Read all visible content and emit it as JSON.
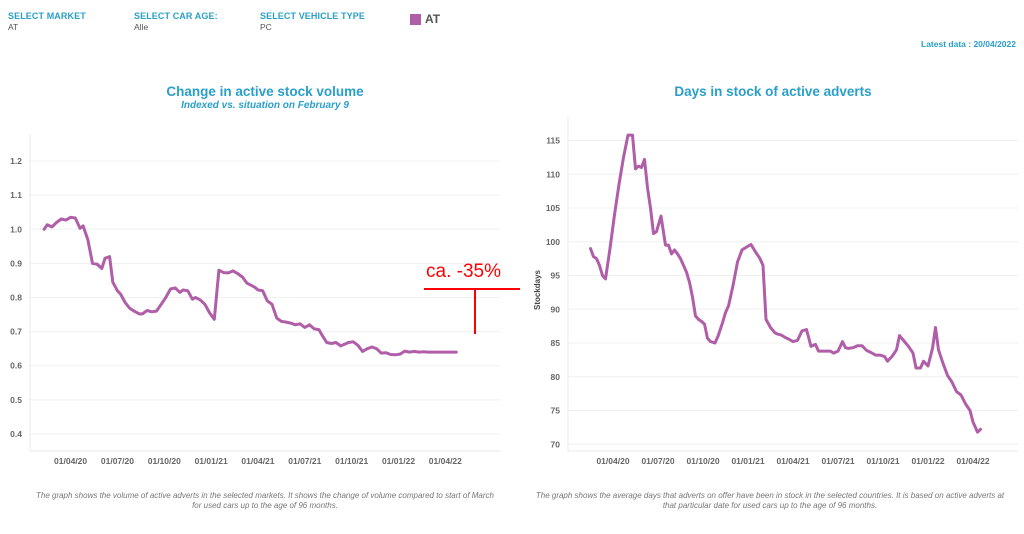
{
  "filters": [
    {
      "label": "SELECT MARKET",
      "value": "AT"
    },
    {
      "label": "SELECT CAR AGE:",
      "value": "Alle"
    },
    {
      "label": "SELECT VEHICLE TYPE",
      "value": "PC"
    }
  ],
  "legend": {
    "label": "AT",
    "color": "#b05ea8"
  },
  "latest_data": "Latest data : 20/04/2022",
  "colors": {
    "accent": "#2a9fc9",
    "series": "#b05ea8",
    "annotation": "#ff0000"
  },
  "chart_data": [
    {
      "type": "line",
      "title": "Change in active stock volume",
      "subtitle": "Indexed vs. situation on February 9",
      "xlabel": "",
      "ylabel": "",
      "ylim": [
        0.35,
        1.25
      ],
      "yticks": [
        1.2,
        1.1,
        1.0,
        0.9,
        0.8,
        0.7,
        0.6,
        0.5,
        0.4
      ],
      "ytick_labels": [
        "1.2",
        "1.1",
        "1.0",
        "0.9",
        "0.8",
        "0.7",
        "0.6",
        "0.5",
        "0.4"
      ],
      "xticks": [
        0,
        3,
        6,
        9,
        12,
        15,
        18,
        21,
        24
      ],
      "xtick_labels": [
        "01/04/20",
        "01/07/20",
        "01/10/20",
        "01/01/21",
        "01/04/21",
        "01/07/21",
        "01/10/21",
        "01/01/22",
        "01/04/22"
      ],
      "xlim": [
        -2.6,
        27.5
      ],
      "x_unit": "months since 01/04/20",
      "grid": true,
      "annotation": {
        "text": "ca. -35%",
        "color": "#ff0000"
      },
      "note": "The graph shows the volume of active adverts in the selected markets. It shows the change of volume compared to start of March for used cars up to the age of 96 months.",
      "series": [
        {
          "name": "AT",
          "color": "#b05ea8",
          "x": [
            -1.7,
            -1.5,
            -1.2,
            -0.9,
            -0.6,
            -0.3,
            0,
            0.3,
            0.6,
            0.8,
            1.1,
            1.4,
            1.7,
            2.0,
            2.2,
            2.5,
            2.7,
            3.0,
            3.2,
            3.5,
            3.8,
            4.0,
            4.2,
            4.4,
            4.6,
            4.9,
            5.2,
            5.5,
            5.8,
            6.1,
            6.4,
            6.7,
            7.0,
            7.2,
            7.5,
            7.8,
            8.0,
            8.3,
            8.6,
            8.9,
            9.2,
            9.5,
            9.8,
            10.1,
            10.4,
            10.7,
            11.0,
            11.3,
            11.6,
            11.8,
            12.0,
            12.3,
            12.6,
            12.9,
            13.2,
            13.5,
            13.8,
            14.1,
            14.4,
            14.7,
            15.0,
            15.3,
            15.6,
            15.9,
            16.1,
            16.4,
            16.7,
            17.0,
            17.3,
            17.6,
            17.8,
            18.1,
            18.4,
            18.7,
            19.0,
            19.3,
            19.6,
            19.9,
            20.2,
            20.5,
            20.8,
            21.1,
            21.4,
            21.7,
            22.0,
            22.3,
            22.6,
            22.9,
            23.2,
            23.5,
            23.8,
            24.1,
            24.4,
            24.7
          ],
          "values": [
            1.0,
            1.013,
            1.007,
            1.02,
            1.03,
            1.027,
            1.035,
            1.033,
            1.003,
            1.01,
            0.97,
            0.9,
            0.898,
            0.885,
            0.915,
            0.92,
            0.845,
            0.82,
            0.81,
            0.785,
            0.768,
            0.762,
            0.757,
            0.752,
            0.752,
            0.762,
            0.758,
            0.76,
            0.78,
            0.8,
            0.825,
            0.828,
            0.815,
            0.822,
            0.82,
            0.795,
            0.8,
            0.793,
            0.78,
            0.755,
            0.736,
            0.88,
            0.873,
            0.872,
            0.878,
            0.87,
            0.86,
            0.842,
            0.835,
            0.83,
            0.822,
            0.82,
            0.79,
            0.78,
            0.74,
            0.73,
            0.728,
            0.725,
            0.72,
            0.723,
            0.712,
            0.72,
            0.708,
            0.706,
            0.69,
            0.668,
            0.665,
            0.668,
            0.658,
            0.664,
            0.668,
            0.67,
            0.66,
            0.642,
            0.65,
            0.655,
            0.65,
            0.637,
            0.638,
            0.633,
            0.632,
            0.634,
            0.643,
            0.64,
            0.642,
            0.64,
            0.641,
            0.64,
            0.64,
            0.64,
            0.64,
            0.64,
            0.64,
            0.64
          ]
        }
      ]
    },
    {
      "type": "line",
      "title": "Days in stock of active adverts",
      "xlabel": "",
      "ylabel": "Stockdays",
      "ylim": [
        69,
        117
      ],
      "yticks": [
        115,
        110,
        105,
        100,
        95,
        90,
        85,
        80,
        75,
        70
      ],
      "ytick_labels": [
        "115",
        "110",
        "105",
        "100",
        "95",
        "90",
        "85",
        "80",
        "75",
        "70"
      ],
      "xticks": [
        0,
        3,
        6,
        9,
        12,
        15,
        18,
        21,
        24
      ],
      "xtick_labels": [
        "01/04/20",
        "01/07/20",
        "01/10/20",
        "01/01/21",
        "01/04/21",
        "01/07/21",
        "01/10/21",
        "01/01/22",
        "01/04/22"
      ],
      "xlim": [
        -3.0,
        27.0
      ],
      "x_unit": "months since 01/04/20",
      "grid": true,
      "note": "The graph shows the average days that adverts on offer have been in stock in the selected countries. It is based on active adverts at that particular date for used cars up to the age of 96 months.",
      "series": [
        {
          "name": "AT",
          "color": "#b05ea8",
          "x": [
            -1.5,
            -1.3,
            -1.1,
            -0.9,
            -0.7,
            -0.5,
            -0.2,
            0.1,
            0.4,
            0.7,
            1.0,
            1.3,
            1.5,
            1.7,
            1.9,
            2.1,
            2.3,
            2.5,
            2.7,
            2.9,
            3.2,
            3.5,
            3.7,
            3.9,
            4.1,
            4.3,
            4.5,
            4.7,
            4.9,
            5.1,
            5.3,
            5.5,
            5.7,
            5.9,
            6.1,
            6.3,
            6.5,
            6.8,
            7.0,
            7.3,
            7.5,
            7.7,
            8.0,
            8.3,
            8.6,
            8.9,
            9.2,
            9.5,
            9.8,
            10.0,
            10.2,
            10.5,
            10.8,
            11.0,
            11.2,
            11.5,
            11.7,
            12.0,
            12.3,
            12.6,
            12.9,
            13.2,
            13.5,
            13.7,
            14.0,
            14.2,
            14.5,
            14.7,
            15.0,
            15.3,
            15.5,
            15.7,
            16.0,
            16.3,
            16.6,
            16.9,
            17.2,
            17.5,
            17.8,
            18.1,
            18.3,
            18.6,
            18.9,
            19.1,
            19.4,
            19.7,
            20.0,
            20.2,
            20.5,
            20.7,
            21.0,
            21.3,
            21.5,
            21.7,
            22.0,
            22.3,
            22.6,
            22.9,
            23.2,
            23.5,
            23.8,
            24.0,
            24.3,
            24.5
          ],
          "values": [
            99,
            97.8,
            97.5,
            96.5,
            95,
            94.5,
            99,
            104,
            108.5,
            112.5,
            115.8,
            115.8,
            110.8,
            111.2,
            111,
            112.2,
            108,
            105,
            101.2,
            101.5,
            103.8,
            99.5,
            99.5,
            98.2,
            98.8,
            98.2,
            97.5,
            96.5,
            95.5,
            94,
            91.8,
            89,
            88.5,
            88.2,
            87.8,
            85.7,
            85.2,
            85,
            86,
            88,
            89.5,
            90.5,
            93.5,
            97,
            98.8,
            99.2,
            99.6,
            98.5,
            97.5,
            96.5,
            88.5,
            87.3,
            86.5,
            86.3,
            86.2,
            85.8,
            85.6,
            85.2,
            85.4,
            86.8,
            87,
            84.5,
            84.8,
            83.8,
            83.8,
            83.8,
            83.8,
            83.5,
            83.8,
            85.2,
            84.3,
            84.2,
            84.3,
            84.6,
            84.6,
            83.9,
            83.6,
            83.2,
            83.2,
            83,
            82.3,
            83,
            84,
            86.1,
            85.3,
            84.5,
            83.5,
            81.3,
            81.3,
            82.3,
            81.6,
            84.2,
            87.3,
            84,
            82,
            80.2,
            79.2,
            77.8,
            77.3,
            76,
            75,
            73.3,
            71.8,
            72.2
          ]
        }
      ]
    }
  ]
}
